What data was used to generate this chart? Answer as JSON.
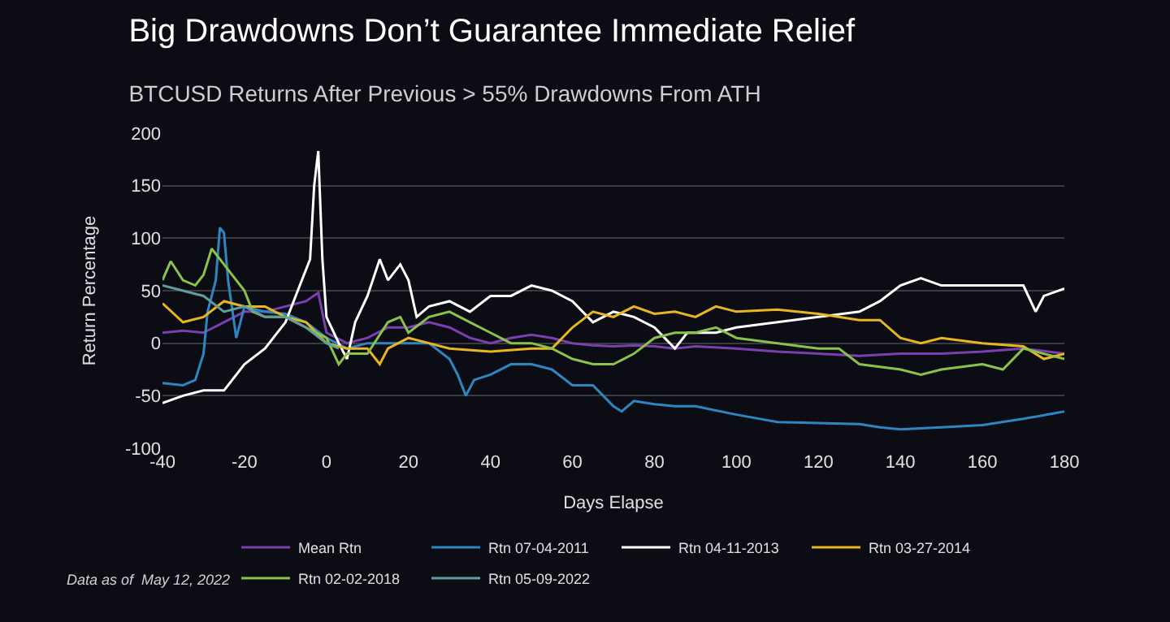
{
  "chart_data": {
    "type": "line",
    "title": "Big Drawdowns Don’t Guarantee Immediate Relief",
    "subtitle": "BTCUSD Returns After Previous > 55% Drawdowns From ATH",
    "xlabel": "Days Elapse",
    "ylabel": "Return Percentage",
    "xlim": [
      -40,
      180
    ],
    "xticks": [
      -40,
      -20,
      0,
      20,
      40,
      60,
      80,
      100,
      120,
      140,
      160,
      180
    ],
    "ylim": [
      -100,
      200
    ],
    "yticks": [
      -100,
      -50,
      0,
      50,
      100,
      150,
      200
    ],
    "grid": "y",
    "legend": "bottom",
    "line_style": "solid",
    "annotations": [
      "Data as of  May 12, 2022"
    ],
    "series": [
      {
        "name": "Mean Rtn",
        "color": "#7b3fb0",
        "x": [
          -40,
          -35,
          -30,
          -25,
          -20,
          -15,
          -10,
          -5,
          -2,
          0,
          5,
          10,
          15,
          20,
          25,
          30,
          35,
          40,
          45,
          50,
          55,
          60,
          65,
          70,
          75,
          80,
          85,
          90,
          100,
          110,
          120,
          130,
          140,
          150,
          160,
          170,
          180
        ],
        "values": [
          10,
          12,
          10,
          20,
          30,
          30,
          35,
          40,
          48,
          10,
          0,
          5,
          15,
          15,
          20,
          15,
          5,
          0,
          5,
          8,
          5,
          0,
          -2,
          -3,
          -2,
          -3,
          -5,
          -3,
          -5,
          -8,
          -10,
          -12,
          -10,
          -10,
          -8,
          -5,
          -10
        ]
      },
      {
        "name": "Rtn 07-04-2011",
        "color": "#2e86c1",
        "x": [
          -40,
          -35,
          -32,
          -30,
          -29,
          -27,
          -26,
          -25,
          -24,
          -22,
          -20,
          -15,
          -10,
          -5,
          0,
          5,
          10,
          20,
          25,
          30,
          32,
          34,
          36,
          40,
          45,
          50,
          55,
          60,
          65,
          70,
          72,
          75,
          80,
          85,
          90,
          100,
          110,
          120,
          130,
          135,
          140,
          150,
          160,
          170,
          180
        ],
        "values": [
          -38,
          -40,
          -35,
          -10,
          30,
          60,
          110,
          105,
          60,
          5,
          35,
          30,
          28,
          20,
          5,
          -5,
          0,
          0,
          0,
          -15,
          -30,
          -50,
          -35,
          -30,
          -20,
          -20,
          -25,
          -40,
          -40,
          -60,
          -65,
          -55,
          -58,
          -60,
          -60,
          -68,
          -75,
          -76,
          -77,
          -80,
          -82,
          -80,
          -78,
          -72,
          -65
        ]
      },
      {
        "name": "Rtn 04-11-2013",
        "color": "#ffffff",
        "x": [
          -40,
          -35,
          -30,
          -25,
          -20,
          -15,
          -10,
          -6,
          -4,
          -3,
          -2,
          -1,
          0,
          3,
          5,
          7,
          10,
          13,
          15,
          18,
          20,
          22,
          25,
          30,
          35,
          40,
          45,
          50,
          55,
          60,
          65,
          70,
          75,
          80,
          85,
          88,
          95,
          100,
          110,
          120,
          130,
          135,
          140,
          145,
          150,
          160,
          170,
          173,
          175,
          180
        ],
        "values": [
          -57,
          -50,
          -45,
          -45,
          -20,
          -5,
          20,
          60,
          80,
          150,
          183,
          80,
          25,
          0,
          -15,
          20,
          45,
          80,
          60,
          75,
          60,
          25,
          35,
          40,
          30,
          45,
          45,
          55,
          50,
          40,
          20,
          30,
          25,
          15,
          -5,
          10,
          10,
          15,
          20,
          25,
          30,
          40,
          55,
          62,
          55,
          55,
          55,
          30,
          45,
          52
        ]
      },
      {
        "name": "Rtn 03-27-2014",
        "color": "#e8b620",
        "x": [
          -40,
          -35,
          -30,
          -25,
          -20,
          -15,
          -10,
          -5,
          0,
          5,
          10,
          13,
          15,
          20,
          25,
          30,
          40,
          50,
          55,
          60,
          65,
          70,
          75,
          80,
          85,
          90,
          95,
          100,
          110,
          120,
          130,
          135,
          140,
          145,
          150,
          160,
          170,
          175,
          180
        ],
        "values": [
          38,
          20,
          25,
          40,
          35,
          35,
          25,
          20,
          0,
          -5,
          -5,
          -20,
          -5,
          5,
          0,
          -5,
          -8,
          -5,
          -5,
          15,
          30,
          25,
          35,
          28,
          30,
          25,
          35,
          30,
          32,
          28,
          22,
          22,
          5,
          0,
          5,
          0,
          -3,
          -15,
          -10
        ]
      },
      {
        "name": "Rtn 02-02-2018",
        "color": "#8bc34a",
        "x": [
          -40,
          -38,
          -35,
          -32,
          -30,
          -28,
          -25,
          -22,
          -20,
          -18,
          -15,
          -10,
          -5,
          0,
          3,
          5,
          10,
          15,
          18,
          20,
          25,
          30,
          35,
          40,
          45,
          50,
          55,
          60,
          65,
          70,
          75,
          80,
          85,
          90,
          95,
          100,
          110,
          120,
          125,
          130,
          140,
          145,
          150,
          160,
          165,
          170,
          175,
          180
        ],
        "values": [
          60,
          78,
          60,
          55,
          65,
          90,
          75,
          60,
          50,
          30,
          25,
          25,
          15,
          5,
          -20,
          -10,
          -10,
          20,
          25,
          10,
          25,
          30,
          20,
          10,
          0,
          0,
          -5,
          -15,
          -20,
          -20,
          -10,
          5,
          10,
          10,
          15,
          5,
          0,
          -5,
          -5,
          -20,
          -25,
          -30,
          -25,
          -20,
          -25,
          -5,
          -10,
          -15
        ]
      },
      {
        "name": "Rtn 05-09-2022",
        "color": "#5f9ea0",
        "x": [
          -40,
          -35,
          -30,
          -25,
          -20,
          -15,
          -10,
          -5,
          0,
          3
        ],
        "values": [
          55,
          50,
          45,
          30,
          35,
          25,
          25,
          15,
          0,
          -5
        ]
      }
    ]
  }
}
